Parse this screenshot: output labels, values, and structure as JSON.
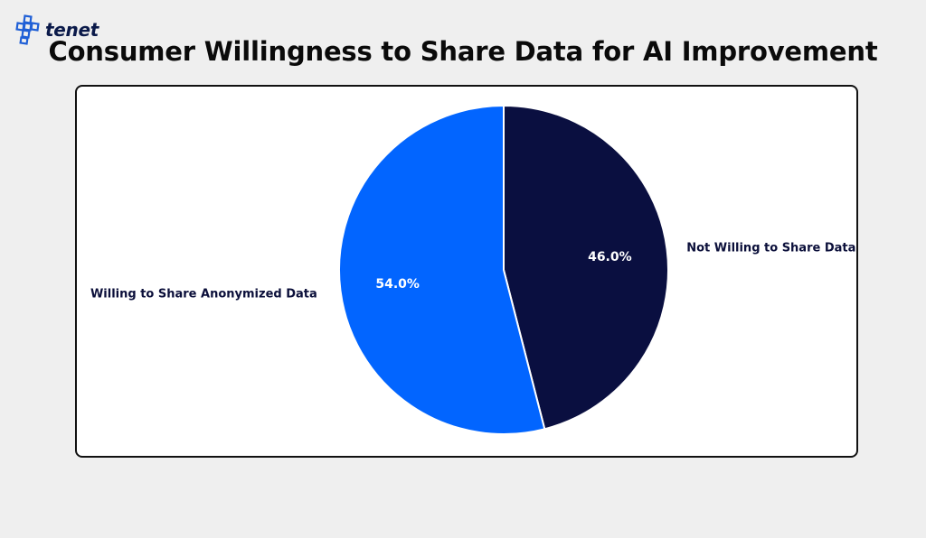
{
  "brand": {
    "name": "tenet",
    "icon": "cross-grid-logo",
    "color": "#1f5fd6"
  },
  "chart_data": {
    "type": "pie",
    "title": "Consumer Willingness to Share Data for AI Improvement",
    "start_angle_deg": 90,
    "direction": "clockwise",
    "slices": [
      {
        "label": "Not Willing to Share Data",
        "value": 46.0,
        "pct_label": "46.0%",
        "color": "#0a0f40"
      },
      {
        "label": "Willing to Share Anonymized Data",
        "value": 54.0,
        "pct_label": "54.0%",
        "color": "#0265ff"
      }
    ]
  }
}
